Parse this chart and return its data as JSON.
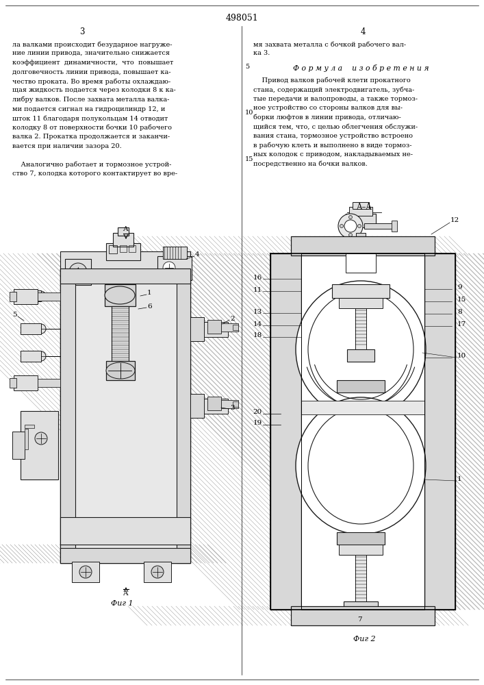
{
  "patent_number": "498051",
  "page_left": "3",
  "page_right": "4",
  "background_color": "#ffffff",
  "text_color": "#000000",
  "left_col_lines": [
    "ла валками происходит безударное нагруже-",
    "ние линии привода, значительно снижается",
    "коэффициент  динамичности,  что  повышает",
    "долговечность линии привода, повышает ка-",
    "чество проката. Во время работы охлаждаю-",
    "щая жидкость подается через колодки 8 к ка-",
    "либру валков. После захвата металла валка-",
    "ми подается сигнал на гидроцилиндр 12, и",
    "шток 11 благодаря полукольцам 14 отводит",
    "колодку 8 от поверхности бочки 10 рабочего",
    "валка 2. Прокатка продолжается и заканчи-",
    "вается при наличии зазора 20.",
    "",
    "    Аналогично работает и тормозное устрой-",
    "ство 7, колодка которого контактирует во вре-"
  ],
  "right_top_lines": [
    "мя захвата металла с бочкой рабочего вал-",
    "ка 3."
  ],
  "formula_header": "Ф о р м у л а    и з о б р е т е н и я",
  "formula_lines": [
    "    Привод валков рабочей клети прокатного",
    "стана, содержащий электродвигатель, зубча-",
    "тые передачи и валопроводы, а также тормоз-",
    "ное устройство со стороны валков для вы-",
    "борки люфтов в линии привода, отличаю-",
    "щийся тем, что, с целью облегчения обслужи-",
    "вания стана, тормозное устройство встроено",
    "в рабочую клеть и выполнено в виде тормоз-",
    "ных колодок с приводом, накладываемых не-",
    "посредственно на бочки валков."
  ],
  "fig1_caption": "Фиг 1",
  "fig2_caption": "Фиг 2"
}
